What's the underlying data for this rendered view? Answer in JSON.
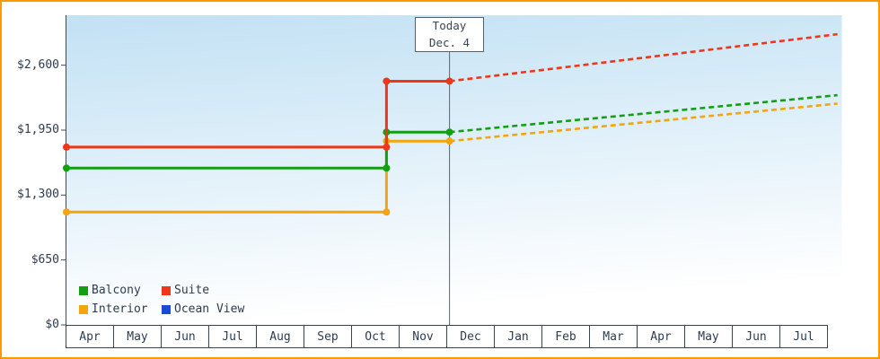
{
  "colors": {
    "frame_border": "#ff9900",
    "plot_gradient_top": "#c2e1f4",
    "plot_gradient_bottom": "#ffffff",
    "today_line": "#5a646e",
    "axis_text": "#2d3c4e"
  },
  "chart_data": {
    "type": "line",
    "title": "",
    "xlabel": "",
    "ylabel": "",
    "grid": false,
    "legend_position": "bottom-left",
    "x_categories": [
      "Apr",
      "May",
      "Jun",
      "Jul",
      "Aug",
      "Sep",
      "Oct",
      "Nov",
      "Dec",
      "Jan",
      "Feb",
      "Mar",
      "Apr",
      "May",
      "Jun",
      "Jul"
    ],
    "y_ticks": [
      {
        "label": "$0",
        "value": 0
      },
      {
        "label": "$650",
        "value": 650
      },
      {
        "label": "$1,300",
        "value": 1300
      },
      {
        "label": "$1,950",
        "value": 1950
      },
      {
        "label": "$2,600",
        "value": 2600
      }
    ],
    "ylim": [
      0,
      3100
    ],
    "xlim": [
      0,
      16
    ],
    "today_marker": {
      "line1": "Today",
      "line2": "Dec. 4",
      "x": 7.9
    },
    "draw_order": [
      3,
      2,
      0,
      1
    ],
    "series": [
      {
        "name": "Balcony",
        "color": "#12a012",
        "solid": [
          [
            0,
            1570
          ],
          [
            6.6,
            1570
          ],
          [
            6.6,
            1930
          ],
          [
            7.9,
            1930
          ]
        ],
        "dashed": [
          [
            7.9,
            1930
          ],
          [
            15.9,
            2300
          ]
        ],
        "markers": [
          [
            0,
            1570
          ],
          [
            6.6,
            1570
          ],
          [
            6.6,
            1930
          ],
          [
            7.9,
            1930
          ]
        ]
      },
      {
        "name": "Suite",
        "color": "#f03518",
        "solid": [
          [
            0,
            1780
          ],
          [
            6.6,
            1780
          ],
          [
            6.6,
            2440
          ],
          [
            7.9,
            2440
          ]
        ],
        "dashed": [
          [
            7.9,
            2440
          ],
          [
            15.9,
            2910
          ]
        ],
        "markers": [
          [
            0,
            1780
          ],
          [
            6.6,
            1780
          ],
          [
            6.6,
            2440
          ],
          [
            7.9,
            2440
          ]
        ]
      },
      {
        "name": "Interior",
        "color": "#f2a50c",
        "solid": [
          [
            0,
            1130
          ],
          [
            6.6,
            1130
          ],
          [
            6.6,
            1840
          ],
          [
            7.9,
            1840
          ]
        ],
        "dashed": [
          [
            7.9,
            1840
          ],
          [
            15.9,
            2215
          ]
        ],
        "markers": [
          [
            0,
            1130
          ],
          [
            6.6,
            1130
          ],
          [
            6.6,
            1840
          ],
          [
            7.9,
            1840
          ]
        ]
      },
      {
        "name": "Ocean View",
        "color": "#1d49d8",
        "solid": [],
        "dashed": [],
        "markers": []
      }
    ]
  }
}
